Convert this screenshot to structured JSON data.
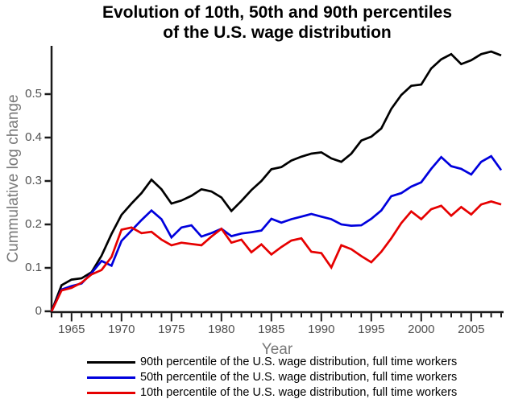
{
  "title": {
    "line1": "Evolution of 10th, 50th and 90th percentiles",
    "line2": "of the U.S. wage distribution"
  },
  "axes": {
    "x_label": "Year",
    "y_label": "Cummulative log change",
    "x_major_ticks": [
      "1965",
      "1970",
      "1975",
      "1980",
      "1985",
      "1990",
      "1995",
      "2000",
      "2005"
    ],
    "y_major_ticks": [
      "0",
      "0.1",
      "0.2",
      "0.3",
      "0.4",
      "0.5"
    ]
  },
  "colors": {
    "axis": "#1a1a1a",
    "tick_label": "#4f4f4f",
    "axis_label": "#787878",
    "series_90th": "#000000",
    "series_50th": "#0000dd",
    "series_10th": "#e60000"
  },
  "chart_data": {
    "type": "line",
    "title": "Evolution of 10th, 50th and 90th percentiles of the U.S. wage distribution",
    "xlabel": "Year",
    "ylabel": "Cummulative log change",
    "xlim": [
      1963,
      2008.6
    ],
    "ylim": [
      0,
      0.611
    ],
    "grid": false,
    "legend_position": "bottom",
    "x_minor_tick_interval": 1,
    "x": [
      1963,
      1964,
      1965,
      1966,
      1967,
      1968,
      1969,
      1970,
      1971,
      1972,
      1973,
      1974,
      1975,
      1976,
      1977,
      1978,
      1979,
      1980,
      1981,
      1982,
      1983,
      1984,
      1985,
      1986,
      1987,
      1988,
      1989,
      1990,
      1991,
      1992,
      1993,
      1994,
      1995,
      1996,
      1997,
      1998,
      1999,
      2000,
      2001,
      2002,
      2003,
      2004,
      2005,
      2006,
      2007,
      2008
    ],
    "series": [
      {
        "name": "90th percentile of the U.S. wage distribution, full time workers",
        "color": "#000000",
        "values": [
          0.0,
          0.06,
          0.073,
          0.076,
          0.09,
          0.128,
          0.178,
          0.222,
          0.248,
          0.272,
          0.303,
          0.281,
          0.248,
          0.255,
          0.266,
          0.281,
          0.276,
          0.262,
          0.231,
          0.254,
          0.279,
          0.3,
          0.327,
          0.332,
          0.347,
          0.356,
          0.363,
          0.366,
          0.352,
          0.344,
          0.363,
          0.393,
          0.402,
          0.421,
          0.466,
          0.498,
          0.519,
          0.522,
          0.559,
          0.58,
          0.592,
          0.569,
          0.578,
          0.592,
          0.598,
          0.589
        ]
      },
      {
        "name": "50th percentile of the U.S. wage distribution, full time workers",
        "color": "#0000dd",
        "values": [
          0.0,
          0.05,
          0.058,
          0.064,
          0.088,
          0.116,
          0.105,
          0.162,
          0.186,
          0.21,
          0.232,
          0.212,
          0.17,
          0.193,
          0.198,
          0.172,
          0.18,
          0.19,
          0.173,
          0.179,
          0.182,
          0.186,
          0.213,
          0.204,
          0.212,
          0.218,
          0.224,
          0.218,
          0.212,
          0.2,
          0.197,
          0.198,
          0.213,
          0.232,
          0.265,
          0.272,
          0.287,
          0.297,
          0.328,
          0.355,
          0.334,
          0.328,
          0.315,
          0.344,
          0.357,
          0.325
        ]
      },
      {
        "name": "10th percentile of the U.S. wage distribution, full time workers",
        "color": "#e60000",
        "values": [
          0.0,
          0.048,
          0.054,
          0.066,
          0.085,
          0.095,
          0.125,
          0.188,
          0.193,
          0.18,
          0.183,
          0.165,
          0.152,
          0.158,
          0.155,
          0.152,
          0.172,
          0.19,
          0.158,
          0.165,
          0.136,
          0.154,
          0.131,
          0.148,
          0.163,
          0.168,
          0.137,
          0.134,
          0.101,
          0.152,
          0.143,
          0.127,
          0.113,
          0.137,
          0.168,
          0.203,
          0.23,
          0.212,
          0.235,
          0.243,
          0.22,
          0.24,
          0.223,
          0.246,
          0.253,
          0.246
        ]
      }
    ]
  },
  "legend": {
    "items": [
      {
        "label": "90th percentile of the U.S. wage distribution, full time workers",
        "color": "#000000"
      },
      {
        "label": "50th percentile of the U.S. wage distribution, full time workers",
        "color": "#0000dd"
      },
      {
        "label": "10th percentile of the U.S. wage distribution, full time workers",
        "color": "#e60000"
      }
    ]
  }
}
